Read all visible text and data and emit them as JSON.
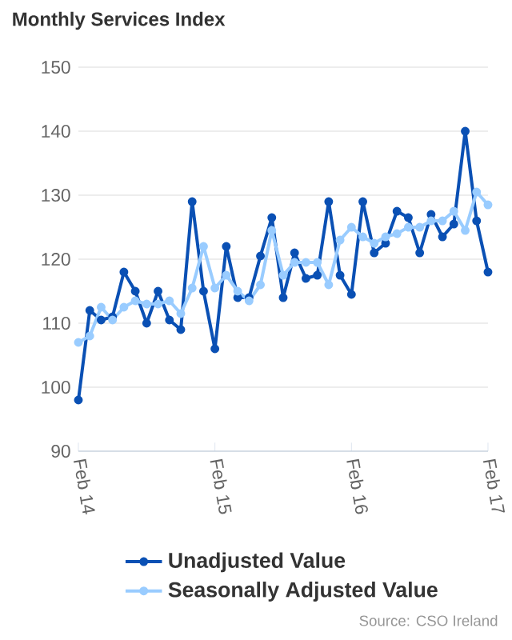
{
  "chart_data": {
    "type": "line",
    "title": "Monthly Services Index",
    "annotations": [
      "Source: CSO Ireland"
    ],
    "x": [
      "2014-02",
      "2014-03",
      "2014-04",
      "2014-05",
      "2014-06",
      "2014-07",
      "2014-08",
      "2014-09",
      "2014-10",
      "2014-11",
      "2014-12",
      "2015-01",
      "2015-02",
      "2015-03",
      "2015-04",
      "2015-05",
      "2015-06",
      "2015-07",
      "2015-08",
      "2015-09",
      "2015-10",
      "2015-11",
      "2015-12",
      "2016-01",
      "2016-02",
      "2016-03",
      "2016-04",
      "2016-05",
      "2016-06",
      "2016-07",
      "2016-08",
      "2016-09",
      "2016-10",
      "2016-11",
      "2016-12",
      "2017-01",
      "2017-02"
    ],
    "series": [
      {
        "name": "Unadjusted Value",
        "color": "#0a50b4",
        "values": [
          98,
          112,
          110.5,
          111,
          118,
          115,
          110,
          115,
          110.5,
          109,
          129,
          115,
          106,
          122,
          114,
          114,
          120.5,
          126.5,
          114,
          121,
          117,
          117.5,
          129,
          117.5,
          114.5,
          129,
          121,
          122.5,
          127.5,
          126.5,
          121,
          127,
          123.5,
          125.5,
          140,
          126,
          118
        ]
      },
      {
        "name": "Seasonally Adjusted Value",
        "color": "#99ccff",
        "values": [
          107,
          108,
          112.5,
          110.5,
          112.5,
          113.5,
          113,
          113,
          113.5,
          111.5,
          115.5,
          122,
          115.5,
          117.5,
          115,
          113.5,
          116,
          124.5,
          117.5,
          119.5,
          119.5,
          119.5,
          116,
          123,
          125,
          123.5,
          122.5,
          123.5,
          124,
          125,
          125,
          126,
          126,
          127.5,
          124.5,
          130.5,
          128.5
        ]
      }
    ],
    "xlim": [
      "2014-02",
      "2017-02"
    ],
    "xticks": [
      {
        "value": "2014-02",
        "label": "Feb 14"
      },
      {
        "value": "2015-02",
        "label": "Feb 15"
      },
      {
        "value": "2016-02",
        "label": "Feb 16"
      },
      {
        "value": "2017-02",
        "label": "Feb 17"
      }
    ],
    "ylim": [
      90,
      150
    ],
    "yticks": [
      90,
      100,
      110,
      120,
      130,
      140,
      150
    ],
    "grid": "y",
    "legend": "bottom",
    "marker": "circle",
    "line_style": "solid"
  }
}
